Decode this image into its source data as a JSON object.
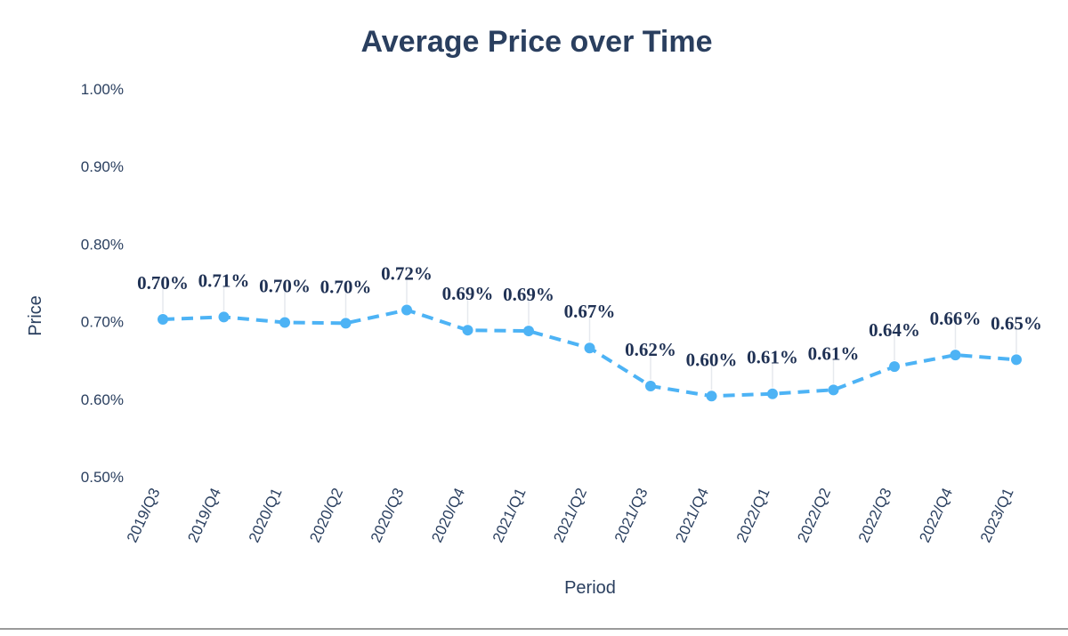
{
  "chart_data": {
    "type": "line",
    "title": "Average Price over Time",
    "xlabel": "Period",
    "ylabel": "Price",
    "ylim": [
      0.005,
      0.01
    ],
    "y_ticks": [
      "0.50%",
      "0.60%",
      "0.70%",
      "0.80%",
      "0.90%",
      "1.00%"
    ],
    "y_tick_values": [
      0.005,
      0.006,
      0.007,
      0.008,
      0.009,
      0.01
    ],
    "categories": [
      "2019/Q3",
      "2019/Q4",
      "2020/Q1",
      "2020/Q2",
      "2020/Q3",
      "2020/Q4",
      "2021/Q1",
      "2021/Q2",
      "2021/Q3",
      "2021/Q4",
      "2022/Q1",
      "2022/Q2",
      "2022/Q3",
      "2022/Q4",
      "2023/Q1"
    ],
    "series": [
      {
        "values": [
          0.00703,
          0.00706,
          0.00699,
          0.00698,
          0.00715,
          0.00689,
          0.00688,
          0.00666,
          0.00617,
          0.00604,
          0.00607,
          0.00612,
          0.00642,
          0.00657,
          0.00651
        ],
        "labels": [
          "0.70%",
          "0.71%",
          "0.70%",
          "0.70%",
          "0.72%",
          "0.69%",
          "0.69%",
          "0.67%",
          "0.62%",
          "0.60%",
          "0.61%",
          "0.61%",
          "0.64%",
          "0.66%",
          "0.65%"
        ],
        "color": "#4db3f5",
        "line_style": "dashed",
        "markers": true
      }
    ],
    "grid": false,
    "legend": "none"
  },
  "colors": {
    "text": "#2a3f5f",
    "label": "#1f3154",
    "series": "#4db3f5",
    "leader": "#e6e9ee"
  }
}
